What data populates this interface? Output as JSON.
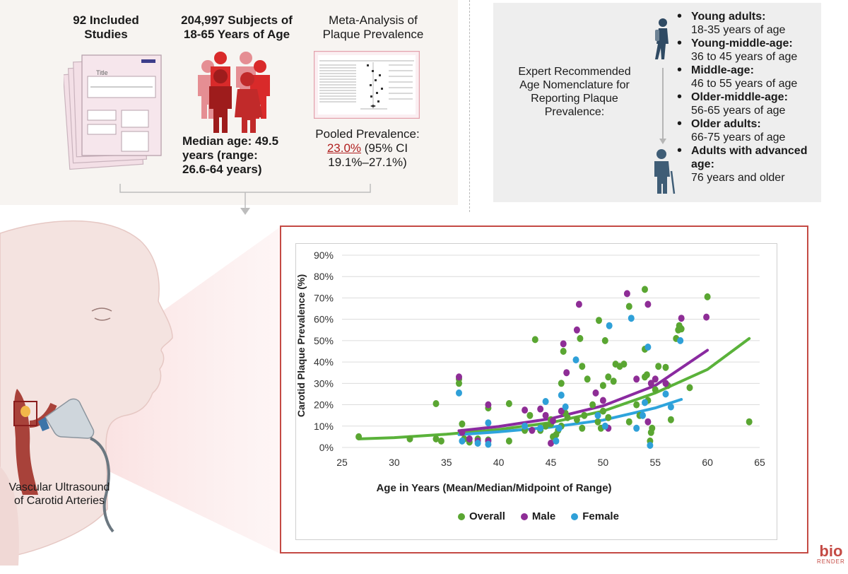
{
  "top": {
    "studies_label": "92 Included Studies",
    "subjects_label": "204,997 Subjects of 18-65 Years of Age",
    "meta_label": "Meta-Analysis of Plaque Prevalence",
    "doc_title": "Title",
    "median_age": "Median age: 49.5 years (range: 26.6-64 years)",
    "pooled_label": "Pooled Prevalence:",
    "pooled_value": "23.0%",
    "pooled_ci": "(95% CI 19.1%–27.1%)"
  },
  "nomenclature": {
    "title": "Expert Recommended Age Nomenclature for Reporting Plaque Prevalence:",
    "items": [
      {
        "label": "Young adults:",
        "range": "18-35 years of age"
      },
      {
        "label": "Young-middle-age:",
        "range": "36 to 45 years of age"
      },
      {
        "label": "Middle-age:",
        "range": "46 to 55 years of age"
      },
      {
        "label": "Older-middle-age:",
        "range": "56-65 years of age"
      },
      {
        "label": "Older adults:",
        "range": "66-75 years of age"
      },
      {
        "label": "Adults with advanced age:",
        "range": "76 years and older"
      }
    ]
  },
  "vascular_label": "Vascular Ultrasound of Carotid Arteries",
  "brand": {
    "line1": "bio",
    "line2": "RENDER"
  },
  "colors": {
    "overall": "#5aa632",
    "male": "#8e2d96",
    "female": "#2fa0d8",
    "accent": "#c44a44",
    "trend_overall": "#5ab23a",
    "trend_male": "#8a2aa0",
    "trend_female": "#2ea4dc"
  },
  "chart_data": {
    "type": "scatter",
    "xlabel": "Age in Years (Mean/Median/Midpoint of Range)",
    "ylabel": "Carotid Plaque Prevalence (%)",
    "xlim": [
      25,
      65
    ],
    "ylim": [
      0,
      90
    ],
    "xticks": [
      25,
      30,
      35,
      40,
      45,
      50,
      55,
      60,
      65
    ],
    "yticks": [
      0,
      10,
      20,
      30,
      40,
      50,
      60,
      70,
      80,
      90
    ],
    "ytick_labels": [
      "0%",
      "10%",
      "20%",
      "30%",
      "40%",
      "50%",
      "60%",
      "70%",
      "80%",
      "90%"
    ],
    "grid": true,
    "legend": "bottom",
    "series": [
      {
        "name": "Overall",
        "points": [
          [
            26.6,
            5
          ],
          [
            31.5,
            4
          ],
          [
            34,
            20.5
          ],
          [
            34,
            4
          ],
          [
            34.5,
            3
          ],
          [
            36.2,
            32
          ],
          [
            36.2,
            30
          ],
          [
            36.5,
            11
          ],
          [
            36.7,
            4
          ],
          [
            37.2,
            2.5
          ],
          [
            38,
            4
          ],
          [
            39,
            18.5
          ],
          [
            39,
            3.5
          ],
          [
            41,
            3
          ],
          [
            41,
            20.5
          ],
          [
            42.5,
            8
          ],
          [
            43,
            15
          ],
          [
            43.5,
            50.5
          ],
          [
            44,
            8
          ],
          [
            44.5,
            10
          ],
          [
            45,
            11
          ],
          [
            45,
            13
          ],
          [
            45.2,
            5
          ],
          [
            45.5,
            6
          ],
          [
            45.7,
            8
          ],
          [
            46,
            30
          ],
          [
            46,
            10
          ],
          [
            46.2,
            45
          ],
          [
            46.4,
            16
          ],
          [
            46.6,
            14
          ],
          [
            47.5,
            13
          ],
          [
            47.8,
            51
          ],
          [
            48,
            38
          ],
          [
            48,
            9
          ],
          [
            48.2,
            15
          ],
          [
            48.5,
            32
          ],
          [
            49,
            20
          ],
          [
            49.5,
            12
          ],
          [
            49.6,
            59.5
          ],
          [
            49.8,
            9
          ],
          [
            50,
            17
          ],
          [
            50,
            29
          ],
          [
            50.2,
            50
          ],
          [
            50.5,
            33
          ],
          [
            50.5,
            14
          ],
          [
            51,
            31
          ],
          [
            51.2,
            39
          ],
          [
            51.6,
            38
          ],
          [
            52,
            39
          ],
          [
            52.5,
            66
          ],
          [
            52.5,
            12
          ],
          [
            53.2,
            20
          ],
          [
            53.5,
            15
          ],
          [
            54,
            74
          ],
          [
            54,
            33
          ],
          [
            54,
            46
          ],
          [
            54.2,
            34
          ],
          [
            54.3,
            22
          ],
          [
            54.5,
            3
          ],
          [
            54.6,
            7
          ],
          [
            54.7,
            9
          ],
          [
            55,
            27
          ],
          [
            55.3,
            38
          ],
          [
            56,
            37.5
          ],
          [
            56.2,
            29
          ],
          [
            56.5,
            13
          ],
          [
            57,
            51
          ],
          [
            57.2,
            55
          ],
          [
            57.3,
            57
          ],
          [
            57.4,
            56
          ],
          [
            57.5,
            55.5
          ],
          [
            58.3,
            28
          ],
          [
            60,
            70.5
          ],
          [
            64,
            12
          ]
        ]
      },
      {
        "name": "Male",
        "points": [
          [
            36.2,
            33
          ],
          [
            36.5,
            7
          ],
          [
            37.2,
            4
          ],
          [
            38,
            3
          ],
          [
            39,
            20
          ],
          [
            39,
            3
          ],
          [
            42.5,
            17.5
          ],
          [
            43.2,
            8
          ],
          [
            44,
            18
          ],
          [
            44.5,
            15
          ],
          [
            45,
            2
          ],
          [
            45.2,
            12.5
          ],
          [
            46,
            17
          ],
          [
            46.2,
            48.5
          ],
          [
            46.5,
            35
          ],
          [
            47.5,
            55
          ],
          [
            47.7,
            67
          ],
          [
            49.3,
            25.5
          ],
          [
            50,
            22
          ],
          [
            50.5,
            9
          ],
          [
            52.3,
            72
          ],
          [
            53.2,
            32
          ],
          [
            54.3,
            12
          ],
          [
            54.3,
            67
          ],
          [
            54.6,
            30
          ],
          [
            55,
            32
          ],
          [
            56,
            30
          ],
          [
            57.5,
            60.5
          ],
          [
            59.9,
            61
          ]
        ]
      },
      {
        "name": "Female",
        "points": [
          [
            36.2,
            25.5
          ],
          [
            36.5,
            3
          ],
          [
            38,
            2
          ],
          [
            39,
            11.5
          ],
          [
            39,
            1.5
          ],
          [
            42.5,
            10
          ],
          [
            44,
            9
          ],
          [
            44.5,
            21.5
          ],
          [
            45.5,
            3
          ],
          [
            45.8,
            9
          ],
          [
            46,
            24.5
          ],
          [
            46.4,
            19
          ],
          [
            47.4,
            41
          ],
          [
            49.5,
            15
          ],
          [
            50.2,
            10
          ],
          [
            50.6,
            57
          ],
          [
            52.7,
            60.5
          ],
          [
            53.2,
            9
          ],
          [
            53.8,
            15
          ],
          [
            54,
            21
          ],
          [
            54.3,
            47
          ],
          [
            54.5,
            1
          ],
          [
            56,
            25
          ],
          [
            56.5,
            19
          ],
          [
            57.4,
            50
          ]
        ]
      }
    ],
    "trendlines": [
      {
        "name": "Overall",
        "points": [
          [
            26.6,
            4
          ],
          [
            30,
            4.6
          ],
          [
            35,
            6.2
          ],
          [
            40,
            8.4
          ],
          [
            45,
            11.6
          ],
          [
            50,
            17
          ],
          [
            55,
            25.5
          ],
          [
            60,
            36.5
          ],
          [
            64,
            51
          ]
        ]
      },
      {
        "name": "Male",
        "points": [
          [
            36.2,
            7.8
          ],
          [
            40,
            9.8
          ],
          [
            45,
            13.5
          ],
          [
            50,
            19.5
          ],
          [
            55,
            29
          ],
          [
            60,
            45.5
          ]
        ]
      },
      {
        "name": "Female",
        "points": [
          [
            36.2,
            6
          ],
          [
            40,
            7.3
          ],
          [
            45,
            9.5
          ],
          [
            50,
            12.8
          ],
          [
            55,
            18.5
          ],
          [
            57.5,
            22.5
          ]
        ]
      }
    ]
  }
}
